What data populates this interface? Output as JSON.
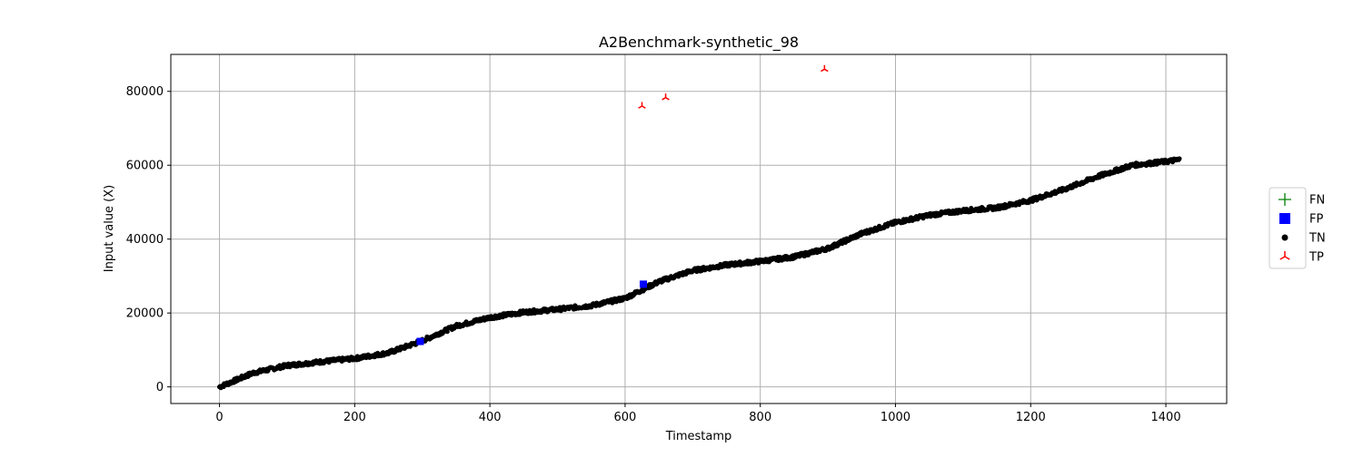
{
  "chart_data": {
    "type": "scatter",
    "title": "A2Benchmark-synthetic_98",
    "xlabel": "Timestamp",
    "ylabel": "Input value (X)",
    "xlim": [
      -72,
      1490
    ],
    "ylim": [
      -4500,
      90000
    ],
    "xticks": [
      0,
      200,
      400,
      600,
      800,
      1000,
      1200,
      1400
    ],
    "yticks": [
      0,
      20000,
      40000,
      60000,
      80000
    ],
    "xtick_labels": [
      "0",
      "200",
      "400",
      "600",
      "800",
      "1000",
      "1200",
      "1400"
    ],
    "ytick_labels": [
      "0",
      "20000",
      "40000",
      "60000",
      "80000"
    ],
    "grid": true,
    "legend_position": "right",
    "legend": [
      {
        "label": "FN",
        "marker": "plus",
        "color": "#008000"
      },
      {
        "label": "FP",
        "marker": "square",
        "color": "#0000ff"
      },
      {
        "label": "TN",
        "marker": "circle",
        "color": "#000000"
      },
      {
        "label": "TP",
        "marker": "tri-up",
        "color": "#ff0000"
      }
    ],
    "tn_trend": {
      "name": "TN",
      "x_start": 0,
      "x_end": 1420,
      "x_step": 1,
      "knots": [
        [
          0,
          0
        ],
        [
          20,
          1500
        ],
        [
          50,
          3800
        ],
        [
          100,
          5800
        ],
        [
          150,
          6800
        ],
        [
          200,
          7700
        ],
        [
          250,
          9200
        ],
        [
          300,
          12500
        ],
        [
          350,
          16500
        ],
        [
          400,
          18800
        ],
        [
          450,
          20200
        ],
        [
          500,
          21000
        ],
        [
          550,
          22000
        ],
        [
          600,
          24000
        ],
        [
          650,
          28500
        ],
        [
          700,
          31500
        ],
        [
          750,
          33000
        ],
        [
          800,
          34000
        ],
        [
          850,
          35200
        ],
        [
          900,
          37500
        ],
        [
          950,
          41500
        ],
        [
          1000,
          44500
        ],
        [
          1050,
          46500
        ],
        [
          1100,
          47700
        ],
        [
          1150,
          48500
        ],
        [
          1200,
          50500
        ],
        [
          1250,
          53500
        ],
        [
          1300,
          57000
        ],
        [
          1350,
          60000
        ],
        [
          1400,
          61000
        ],
        [
          1420,
          61500
        ]
      ],
      "noise_amplitude": 500
    },
    "series": [
      {
        "name": "TP",
        "marker": "tri-up",
        "color": "#ff0000",
        "points": [
          [
            625,
            76000
          ],
          [
            660,
            78300
          ],
          [
            895,
            86000
          ]
        ]
      },
      {
        "name": "FP",
        "marker": "square",
        "color": "#0000ff",
        "points": [
          [
            297,
            12300
          ],
          [
            627,
            27800
          ]
        ]
      },
      {
        "name": "FN",
        "marker": "plus",
        "color": "#008000",
        "points": []
      }
    ]
  }
}
